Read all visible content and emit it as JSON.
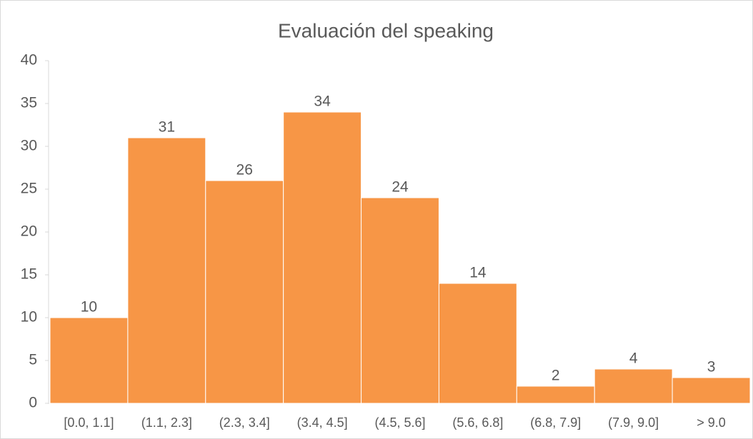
{
  "chart_data": {
    "type": "bar",
    "title": "Evaluación del speaking",
    "categories": [
      "[0.0, 1.1]",
      "(1.1, 2.3]",
      "(2.3, 3.4]",
      "(3.4, 4.5]",
      "(4.5, 5.6]",
      "(5.6, 6.8]",
      "(6.8, 7.9]",
      "(7.9, 9.0]",
      "> 9.0"
    ],
    "values": [
      10,
      31,
      26,
      34,
      24,
      14,
      2,
      4,
      3
    ],
    "color": "#f79646",
    "ylim": [
      0,
      40
    ],
    "yticks": [
      0,
      5,
      10,
      15,
      20,
      25,
      30,
      35,
      40
    ],
    "grid": false
  }
}
